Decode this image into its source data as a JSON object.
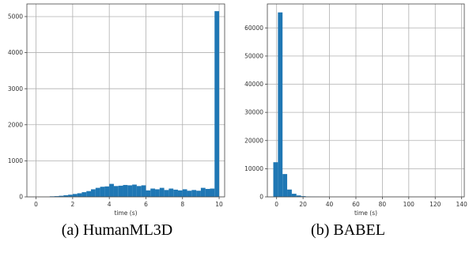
{
  "chart_data": [
    {
      "type": "bar",
      "caption": "(a) HumanML3D",
      "xlabel": "time (s)",
      "ylabel": "",
      "xlim": [
        -0.5,
        10.3
      ],
      "ylim": [
        0,
        5350
      ],
      "xticks": [
        0,
        2,
        4,
        6,
        8,
        10
      ],
      "yticks": [
        0,
        1000,
        2000,
        3000,
        4000,
        5000
      ],
      "grid": true,
      "color": "#1f77b4",
      "bin_width": 0.25,
      "bin_starts": [
        0.75,
        1.0,
        1.25,
        1.5,
        1.75,
        2.0,
        2.25,
        2.5,
        2.75,
        3.0,
        3.25,
        3.5,
        3.75,
        4.0,
        4.25,
        4.5,
        4.75,
        5.0,
        5.25,
        5.5,
        5.75,
        6.0,
        6.25,
        6.5,
        6.75,
        7.0,
        7.25,
        7.5,
        7.75,
        8.0,
        8.25,
        8.5,
        8.75,
        9.0,
        9.25,
        9.5,
        9.75
      ],
      "values": [
        15,
        20,
        30,
        45,
        60,
        80,
        100,
        130,
        160,
        210,
        250,
        280,
        290,
        360,
        300,
        310,
        330,
        320,
        340,
        300,
        320,
        180,
        230,
        210,
        250,
        190,
        230,
        200,
        180,
        210,
        170,
        190,
        170,
        250,
        220,
        230,
        5150
      ]
    },
    {
      "type": "bar",
      "caption": "(b) BABEL",
      "xlabel": "time (s)",
      "ylabel": "",
      "xlim": [
        -7,
        142
      ],
      "ylim": [
        0,
        68500
      ],
      "xticks": [
        0,
        20,
        40,
        60,
        80,
        100,
        120,
        140
      ],
      "yticks": [
        0,
        10000,
        20000,
        30000,
        40000,
        50000,
        60000
      ],
      "grid": true,
      "color": "#1f77b4",
      "bin_width": 3.5,
      "bin_starts": [
        -2.5,
        1.0,
        4.5,
        8.0,
        11.5,
        15.0,
        18.5,
        22.0,
        25.5,
        29.0
      ],
      "values": [
        12300,
        65500,
        8100,
        2600,
        1100,
        500,
        250,
        120,
        60,
        30
      ]
    }
  ]
}
